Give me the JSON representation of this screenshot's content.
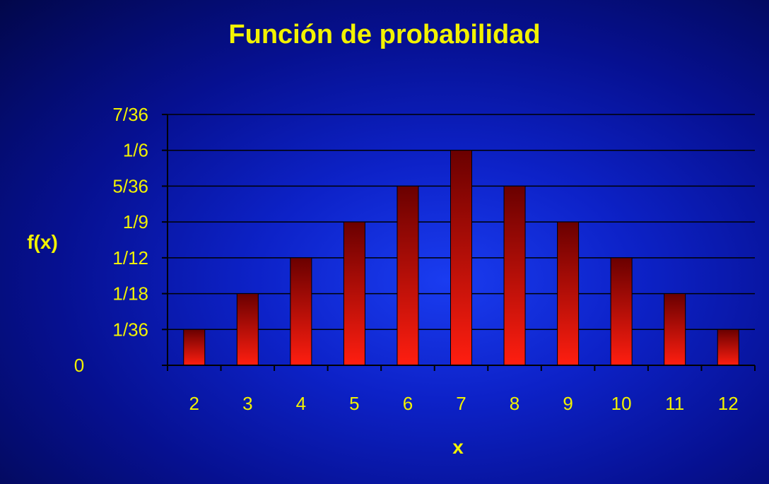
{
  "chart_data": {
    "type": "bar",
    "title": "Función de probabilidad",
    "xlabel": "x",
    "ylabel": "f(x)",
    "categories": [
      "2",
      "3",
      "4",
      "5",
      "6",
      "7",
      "8",
      "9",
      "10",
      "11",
      "12"
    ],
    "values": [
      0.027778,
      0.055556,
      0.083333,
      0.111111,
      0.138889,
      0.166667,
      0.138889,
      0.111111,
      0.083333,
      0.055556,
      0.027778
    ],
    "ylim": [
      0,
      0.194444
    ],
    "yticks": [
      0,
      0.027778,
      0.055556,
      0.083333,
      0.111111,
      0.138889,
      0.166667,
      0.194444
    ],
    "ytick_labels": [
      "0",
      "1/36",
      "1/18",
      "1/12",
      "1/9",
      "5/36",
      "1/6",
      "7/36"
    ],
    "grid": "horizontal",
    "legend": "none",
    "colors": {
      "bar_top": "#6a0000",
      "bar_bottom": "#ff1e10",
      "text": "#f2f200",
      "grid": "#000000"
    }
  }
}
